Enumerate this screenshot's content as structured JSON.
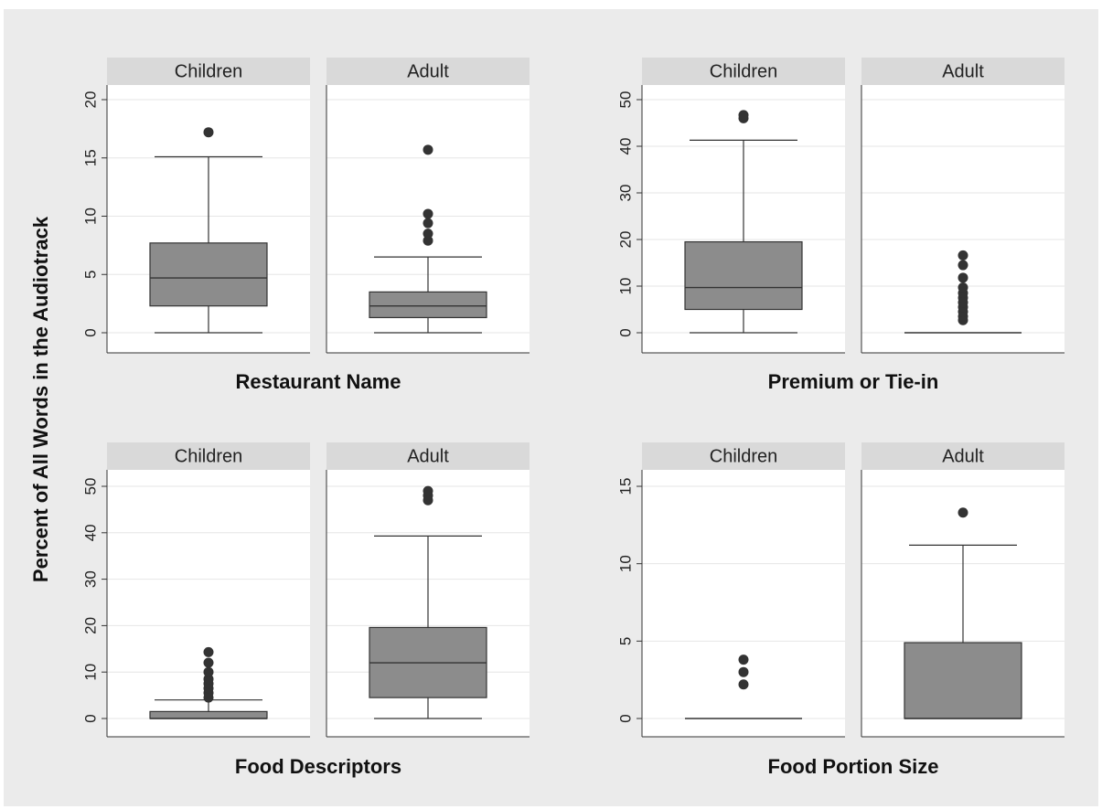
{
  "chart_data": {
    "type": "box",
    "ylabel": "Percent of All Words in the Audiotrack",
    "colors": {
      "box_fill": "#8c8c8c",
      "outline": "#333333",
      "strip": "#d9d9d9",
      "background": "#ebebeb",
      "grid": "#e6e6e6"
    },
    "grid": true,
    "panels": [
      {
        "xlabel": "Restaurant Name",
        "ylim": [
          0,
          20
        ],
        "yticks": [
          0,
          5,
          10,
          15,
          20
        ],
        "groups": [
          {
            "label": "Children",
            "whisker_low": 0,
            "q1": 2.3,
            "median": 4.7,
            "q3": 7.7,
            "whisker_high": 15.1,
            "outliers": [
              17.2
            ]
          },
          {
            "label": "Adult",
            "whisker_low": 0,
            "q1": 1.3,
            "median": 2.3,
            "q3": 3.5,
            "whisker_high": 6.5,
            "outliers": [
              7.9,
              8.5,
              9.4,
              10.2,
              15.7
            ]
          }
        ]
      },
      {
        "xlabel": "Premium or Tie-in",
        "ylim": [
          0,
          50
        ],
        "yticks": [
          0,
          10,
          20,
          30,
          40,
          50
        ],
        "groups": [
          {
            "label": "Children",
            "whisker_low": 0,
            "q1": 5,
            "median": 9.7,
            "q3": 19.5,
            "whisker_high": 41.3,
            "outliers": [
              46,
              46.7
            ]
          },
          {
            "label": "Adult",
            "whisker_low": 0,
            "q1": 0,
            "median": 0,
            "q3": 0,
            "whisker_high": 0,
            "outliers": [
              2.7,
              3.5,
              4.5,
              5.5,
              6.5,
              7.5,
              8.5,
              9.7,
              11.8,
              14.5,
              16.6
            ]
          }
        ]
      },
      {
        "xlabel": "Food Descriptors",
        "ylim": [
          0,
          50
        ],
        "yticks": [
          0,
          10,
          20,
          30,
          40,
          50
        ],
        "groups": [
          {
            "label": "Children",
            "whisker_low": 0,
            "q1": 0,
            "median": 0,
            "q3": 1.5,
            "whisker_high": 4,
            "outliers": [
              4.5,
              5.5,
              6.5,
              7.5,
              8.5,
              10,
              12,
              14.3
            ]
          },
          {
            "label": "Adult",
            "whisker_low": 0,
            "q1": 4.5,
            "median": 12,
            "q3": 19.6,
            "whisker_high": 39.3,
            "outliers": [
              47,
              48,
              49
            ]
          }
        ]
      },
      {
        "xlabel": "Food Portion Size",
        "ylim": [
          0,
          15
        ],
        "yticks": [
          0,
          5,
          10,
          15
        ],
        "groups": [
          {
            "label": "Children",
            "whisker_low": 0,
            "q1": 0,
            "median": 0,
            "q3": 0,
            "whisker_high": 0,
            "outliers": [
              2.2,
              3.0,
              3.8
            ]
          },
          {
            "label": "Adult",
            "whisker_low": 0,
            "q1": 0,
            "median": 0,
            "q3": 4.9,
            "whisker_high": 11.2,
            "outliers": [
              13.3
            ]
          }
        ]
      }
    ]
  }
}
